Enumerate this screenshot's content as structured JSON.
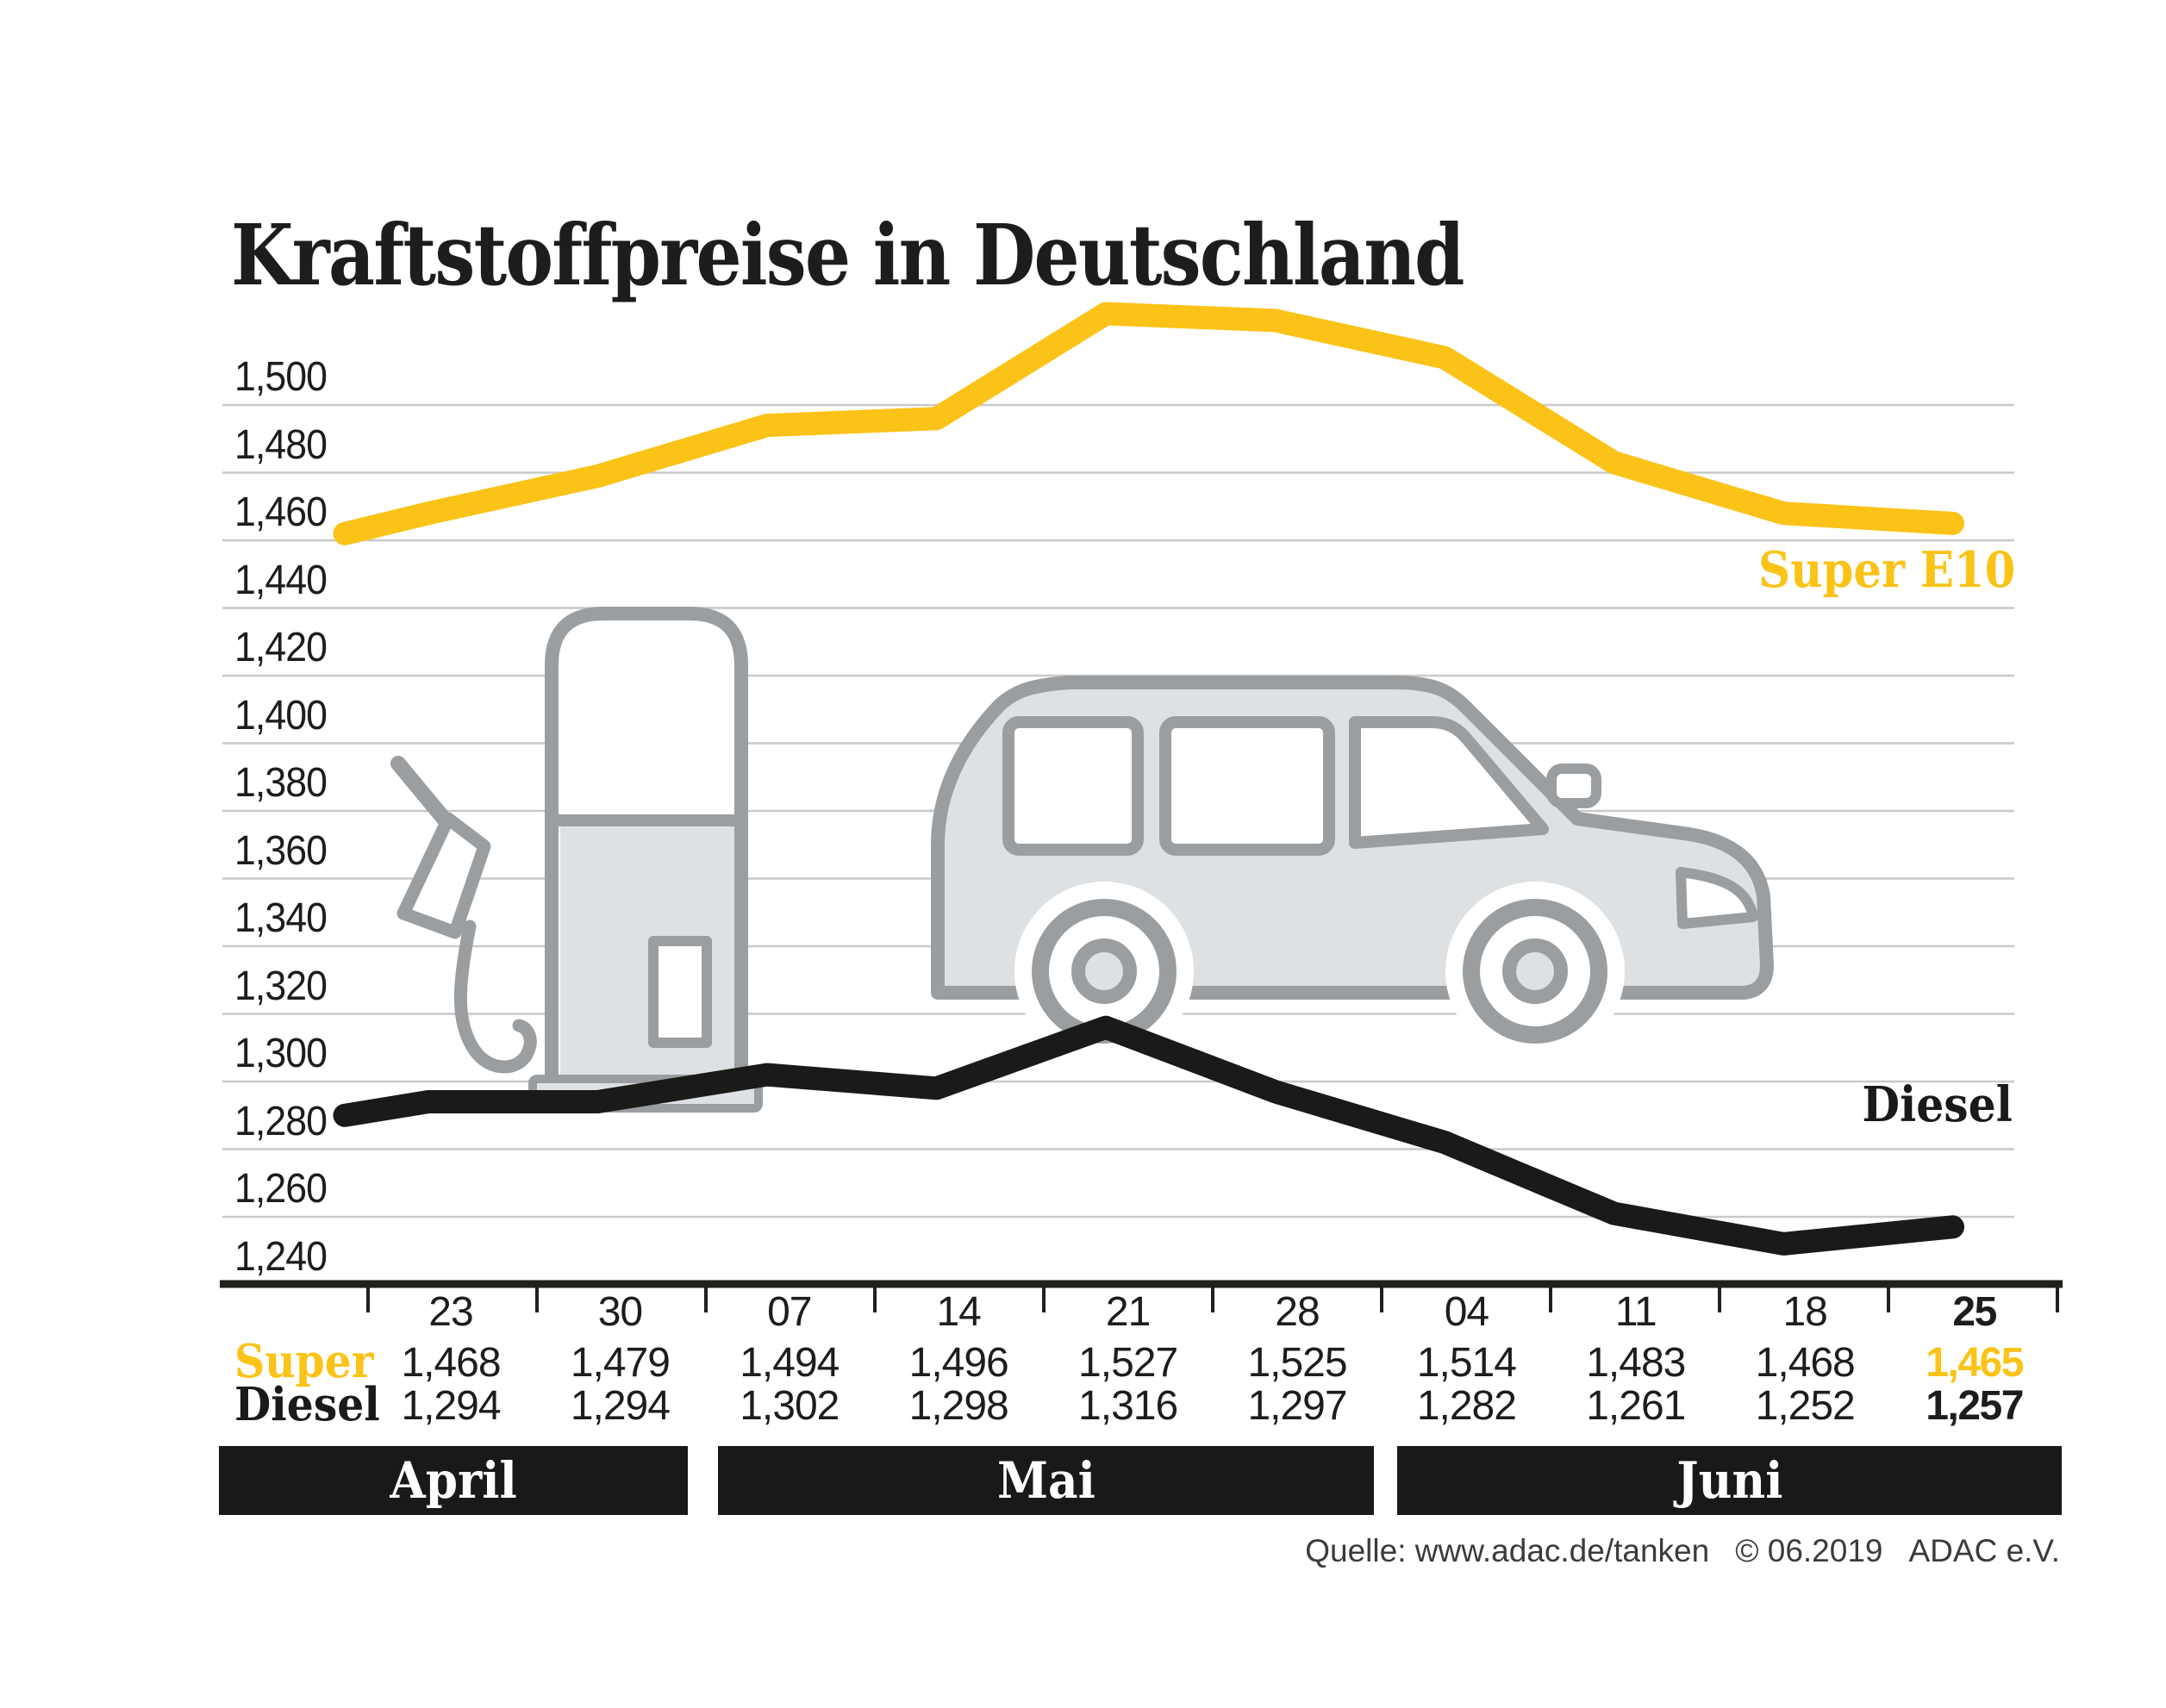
{
  "title": "Kraftstoffpreise in Deutschland",
  "chart_data": {
    "type": "line",
    "title": "Kraftstoffpreise in Deutschland",
    "x_tick_labels": [
      "23",
      "30",
      "07",
      "14",
      "21",
      "28",
      "04",
      "11",
      "18",
      "25"
    ],
    "y_tick_labels": [
      "1,500",
      "1,480",
      "1,460",
      "1,440",
      "1,420",
      "1,400",
      "1,380",
      "1,360",
      "1,340",
      "1,320",
      "1,300",
      "1,280",
      "1,260",
      "1,240"
    ],
    "ylim": [
      1.24,
      1.54
    ],
    "y_step": 0.02,
    "grid": true,
    "legend_position": "inline-right",
    "series": [
      {
        "name": "Super",
        "label": "Super E10",
        "color": "#FBC318",
        "lead_in": 1.462,
        "values": [
          1.468,
          1.479,
          1.494,
          1.496,
          1.527,
          1.525,
          1.514,
          1.483,
          1.468,
          1.465
        ]
      },
      {
        "name": "Diesel",
        "label": "Diesel",
        "color": "#1A1A18",
        "lead_in": 1.29,
        "values": [
          1.294,
          1.294,
          1.302,
          1.298,
          1.316,
          1.297,
          1.282,
          1.261,
          1.252,
          1.257
        ]
      }
    ],
    "months": [
      {
        "label": "April",
        "columns": 2
      },
      {
        "label": "Mai",
        "columns": 4
      },
      {
        "label": "Juni",
        "columns": 4
      }
    ]
  },
  "table": {
    "column_headers": [
      "23",
      "30",
      "07",
      "14",
      "21",
      "28",
      "04",
      "11",
      "18",
      "25"
    ],
    "rows": [
      {
        "label": "Super",
        "values": [
          "1,468",
          "1,479",
          "1,494",
          "1,496",
          "1,527",
          "1,525",
          "1,514",
          "1,483",
          "1,468",
          "1,465"
        ]
      },
      {
        "label": "Diesel",
        "values": [
          "1,294",
          "1,294",
          "1,302",
          "1,298",
          "1,316",
          "1,297",
          "1,282",
          "1,261",
          "1,252",
          "1,257"
        ]
      }
    ],
    "highlight_last_column": true
  },
  "footer": {
    "source": "Quelle: www.adac.de/tanken",
    "copyright": "© 06.2019",
    "organization": "ADAC e.V."
  },
  "colors": {
    "super_yellow": "#FBC318",
    "diesel_black": "#1A1A18",
    "grid_gray": "#C9C9C9",
    "axis_black": "#21201a",
    "icon_fill": "#DEE1E3",
    "icon_stroke": "#9B9EA1",
    "band_background": "#1A1918",
    "text_dark": "#1D1D1B"
  }
}
